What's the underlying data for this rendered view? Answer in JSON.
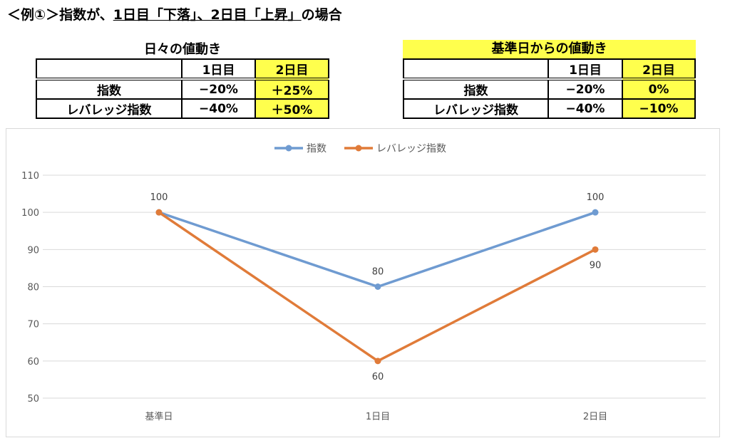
{
  "title": {
    "prefix": "＜例①＞指数が、",
    "underlined": "1日目「下落」、2日目「上昇」",
    "suffix": "の場合"
  },
  "table_daily": {
    "caption": "日々の値動き",
    "headers": [
      "",
      "1日目",
      "2日目"
    ],
    "rows": [
      [
        "指数",
        "−20%",
        "＋25%"
      ],
      [
        "レバレッジ指数",
        "−40%",
        "＋50%"
      ]
    ]
  },
  "table_base": {
    "caption": "基準日からの値動き",
    "headers": [
      "",
      "1日目",
      "2日目"
    ],
    "rows": [
      [
        "指数",
        "−20%",
        "0%"
      ],
      [
        "レバレッジ指数",
        "−40%",
        "−10%"
      ]
    ]
  },
  "colors": {
    "highlight": "#ffff4d",
    "index": "#6f9bd1",
    "leverage": "#e07b39"
  },
  "chart_data": {
    "type": "line",
    "categories": [
      "基準日",
      "1日目",
      "2日目"
    ],
    "series": [
      {
        "name": "指数",
        "values": [
          100,
          80,
          100
        ],
        "color": "#6f9bd1"
      },
      {
        "name": "レバレッジ指数",
        "values": [
          100,
          60,
          90
        ],
        "color": "#e07b39"
      }
    ],
    "ylim": [
      50,
      110
    ],
    "yticks": [
      50,
      60,
      70,
      80,
      90,
      100,
      110
    ],
    "grid": true,
    "legend": "top",
    "data_labels": [
      [
        "100",
        "80",
        "100"
      ],
      [
        "",
        "60",
        "90"
      ]
    ]
  }
}
